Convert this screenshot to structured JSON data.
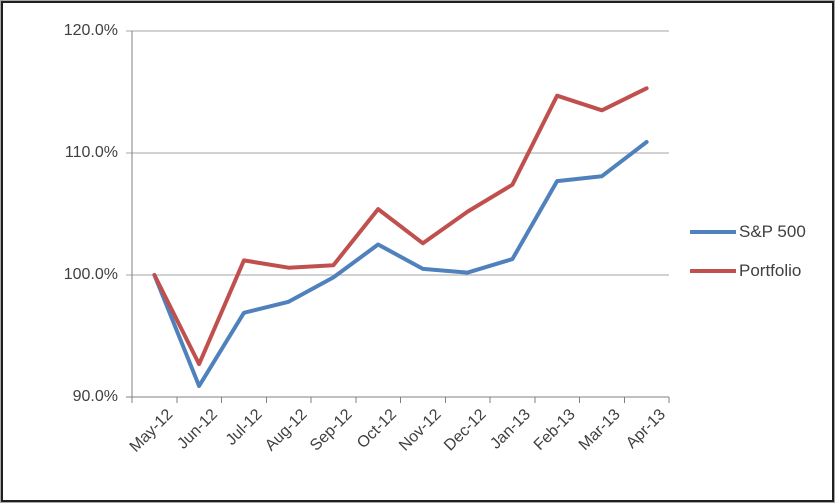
{
  "chart_data": {
    "type": "line",
    "title": "",
    "xlabel": "",
    "ylabel": "",
    "categories": [
      "May-12",
      "Jun-12",
      "Jul-12",
      "Aug-12",
      "Sep-12",
      "Oct-12",
      "Nov-12",
      "Dec-12",
      "Jan-13",
      "Feb-13",
      "Mar-13",
      "Apr-13"
    ],
    "series": [
      {
        "name": "S&P 500",
        "color": "#4F81BD",
        "values": [
          100.0,
          90.9,
          96.9,
          97.8,
          99.8,
          102.5,
          100.5,
          100.2,
          101.3,
          107.7,
          108.1,
          110.9
        ]
      },
      {
        "name": "Portfolio",
        "color": "#C0504D",
        "values": [
          100.0,
          92.7,
          101.2,
          100.6,
          100.8,
          105.4,
          102.6,
          105.2,
          107.4,
          114.7,
          113.5,
          115.3
        ]
      }
    ],
    "ylim": [
      90,
      120
    ],
    "y_ticks": [
      {
        "label": "120.0%",
        "value": 120
      },
      {
        "label": "110.0%",
        "value": 110
      },
      {
        "label": "100.0%",
        "value": 100
      },
      {
        "label": "90.0%",
        "value": 90
      }
    ],
    "grid": true,
    "legend_position": "right",
    "colors": {
      "gridline": "#A6A6A6",
      "axis": "#808080",
      "text": "#404040",
      "background": "#FFFFFF",
      "frame_border": "#1F1F1F"
    }
  }
}
